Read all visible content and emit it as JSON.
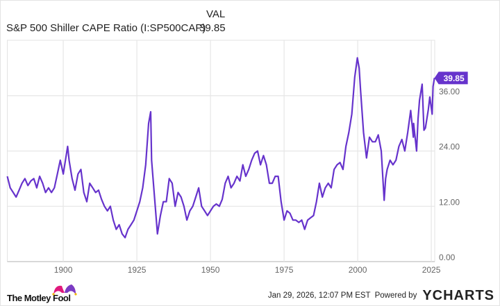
{
  "header": {
    "column_label": "VAL",
    "series_name": "S&P 500 Shiller CAPE Ratio (I:SP500CAP)",
    "series_value": "39.85"
  },
  "footer": {
    "logo_text": "The Motley Fool",
    "timestamp": "Jan 29, 2026, 12:07 PM EST",
    "powered_by": "Powered by",
    "brand": "YCHARTS"
  },
  "colors": {
    "line": "#6633cc",
    "grid": "#e6e6e6",
    "brand_blue": "#1a8fe0"
  },
  "chart_data": {
    "type": "line",
    "title": "",
    "xlabel": "",
    "ylabel": "",
    "xlim": [
      1881,
      2026.3
    ],
    "ylim": [
      0,
      48
    ],
    "grid": true,
    "y_axis_side": "right",
    "x_ticks": [
      "1900",
      "1925",
      "1950",
      "1975",
      "2000",
      "2025"
    ],
    "y_ticks": [
      "0.00",
      "12.00",
      "24.00",
      "36.00"
    ],
    "last_value_label": "39.85",
    "series": [
      {
        "x": [
          1881,
          1882,
          1883,
          1884,
          1885,
          1886,
          1887,
          1888,
          1889,
          1890,
          1891,
          1892,
          1893,
          1894,
          1895,
          1896,
          1897,
          1898,
          1899,
          1900,
          1901.5,
          1902,
          1903,
          1904,
          1905,
          1906,
          1907,
          1908,
          1909,
          1910,
          1911,
          1912,
          1913,
          1914,
          1915,
          1916,
          1917,
          1918,
          1919,
          1920,
          1921,
          1922,
          1923,
          1924,
          1925,
          1926,
          1927,
          1928,
          1929,
          1929.7,
          1930,
          1931,
          1932,
          1933,
          1934,
          1935,
          1936,
          1937,
          1938,
          1939,
          1940,
          1941,
          1942,
          1943,
          1944,
          1945,
          1946,
          1947,
          1948,
          1949,
          1950,
          1951,
          1952,
          1953,
          1954,
          1955,
          1956,
          1957,
          1958,
          1959,
          1960,
          1961,
          1962,
          1963,
          1964,
          1965,
          1966,
          1967,
          1968,
          1969,
          1970,
          1971,
          1972,
          1973,
          1974,
          1975,
          1976,
          1977,
          1978,
          1979,
          1980,
          1981,
          1982,
          1983,
          1984,
          1985,
          1986,
          1987,
          1988,
          1989,
          1990,
          1991,
          1992,
          1993,
          1994,
          1995,
          1996,
          1997,
          1998,
          1999,
          1999.9,
          2000.5,
          2001,
          2002,
          2003,
          2004,
          2005,
          2006,
          2007,
          2008,
          2009,
          2009.5,
          2010,
          2011,
          2012,
          2013,
          2014,
          2015,
          2016,
          2017,
          2018,
          2018.9,
          2019,
          2020,
          2020.5,
          2021,
          2021.9,
          2022.5,
          2023,
          2024,
          2024.5,
          2025.3,
          2025.6,
          2026.08
        ],
        "y": [
          18.5,
          16,
          15,
          14,
          15.5,
          17,
          18,
          16.5,
          17.5,
          18,
          16,
          18.5,
          17,
          15,
          16,
          15,
          16,
          19,
          22,
          19,
          25,
          22,
          18,
          15.5,
          19,
          20,
          15,
          13,
          17,
          16,
          15,
          15.5,
          13.5,
          12,
          11,
          12,
          9,
          7,
          8,
          6,
          5.2,
          7,
          8,
          9,
          11,
          13,
          16,
          21,
          30,
          32.5,
          22,
          14,
          6,
          10,
          13,
          13,
          18,
          17,
          12,
          15,
          14,
          12,
          9,
          11,
          12,
          14,
          16,
          12,
          11,
          10,
          11,
          12,
          12.5,
          12,
          13.5,
          17,
          18.5,
          16,
          17,
          18.5,
          17.5,
          21,
          18.5,
          20,
          22,
          23.5,
          24,
          21,
          23,
          21,
          17,
          17,
          18.5,
          18.5,
          13,
          9,
          11,
          10.5,
          9,
          9,
          8.5,
          9,
          7,
          9,
          9.5,
          10,
          13,
          17,
          14,
          16,
          17,
          16,
          20,
          21,
          21.5,
          20,
          25,
          28,
          32,
          40,
          44.2,
          42,
          37,
          28,
          22.5,
          27,
          26,
          26,
          27.5,
          24,
          13.3,
          18,
          20,
          22,
          21,
          22,
          25,
          26.5,
          24,
          28,
          32.8,
          27,
          30,
          24,
          31,
          35,
          38.5,
          28.5,
          29,
          33,
          35.7,
          32,
          38,
          39.85
        ]
      }
    ]
  }
}
